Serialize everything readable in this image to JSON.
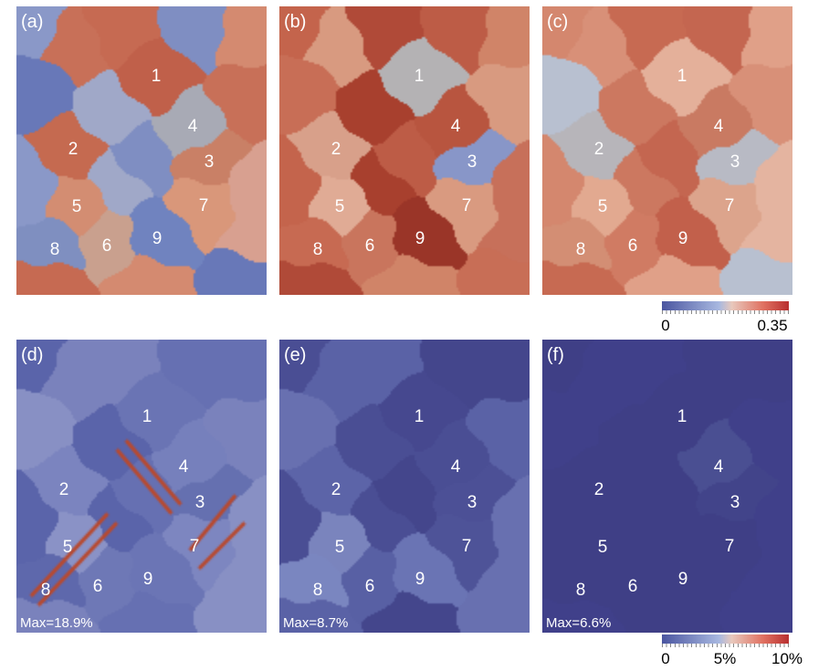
{
  "panels": [
    {
      "id": "a",
      "label": "(a)",
      "max": null
    },
    {
      "id": "b",
      "label": "(b)",
      "max": null
    },
    {
      "id": "c",
      "label": "(c)",
      "max": null
    },
    {
      "id": "d",
      "label": "(d)",
      "max": "Max=18.9%"
    },
    {
      "id": "e",
      "label": "(e)",
      "max": "Max=8.7%"
    },
    {
      "id": "f",
      "label": "(f)",
      "max": "Max=6.6%"
    }
  ],
  "grain_labels": [
    "1",
    "2",
    "3",
    "4",
    "5",
    "6",
    "7",
    "8",
    "9"
  ],
  "colorbar_top": {
    "min_label": "0",
    "max_label": "0.35",
    "range": [
      0,
      0.35
    ]
  },
  "colorbar_bottom": {
    "min_label": "0",
    "mid_label": "5%",
    "max_label": "10%",
    "range": [
      0,
      10
    ]
  },
  "colors": {
    "low": "#4a55a0",
    "mid": "#d8d4dc",
    "high": "#b83030"
  }
}
